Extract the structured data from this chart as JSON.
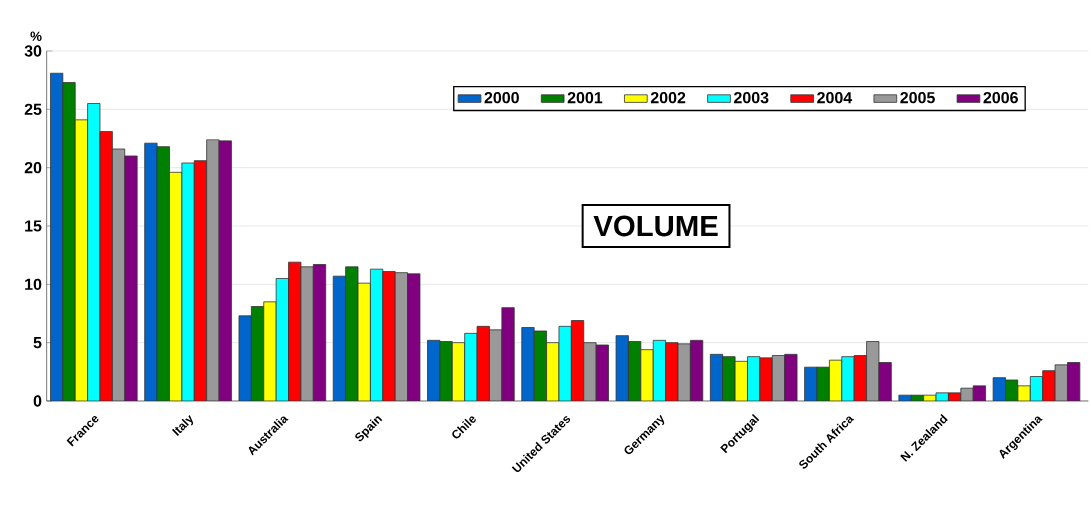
{
  "chart_data": {
    "type": "bar",
    "ylabel": "%",
    "annotations": [
      "VOLUME"
    ],
    "categories": [
      "France",
      "Italy",
      "Australia",
      "Spain",
      "Chile",
      "United States",
      "Germany",
      "Portugal",
      "South Africa",
      "N. Zealand",
      "Argentina"
    ],
    "series": [
      {
        "name": "2000",
        "color": "#0066cc",
        "values": [
          28.1,
          22.1,
          7.3,
          10.7,
          5.2,
          6.3,
          5.6,
          4.0,
          2.9,
          0.5,
          2.0
        ]
      },
      {
        "name": "2001",
        "color": "#008000",
        "values": [
          27.3,
          21.8,
          8.1,
          11.5,
          5.1,
          6.0,
          5.1,
          3.8,
          2.9,
          0.5,
          1.8
        ]
      },
      {
        "name": "2002",
        "color": "#ffff00",
        "values": [
          24.1,
          19.6,
          8.5,
          10.1,
          5.0,
          5.0,
          4.4,
          3.4,
          3.5,
          0.5,
          1.3
        ]
      },
      {
        "name": "2003",
        "color": "#00ffff",
        "values": [
          25.5,
          20.4,
          10.5,
          11.3,
          5.8,
          6.4,
          5.2,
          3.8,
          3.8,
          0.7,
          2.1
        ]
      },
      {
        "name": "2004",
        "color": "#ff0000",
        "values": [
          23.1,
          20.6,
          11.9,
          11.1,
          6.4,
          6.9,
          5.0,
          3.7,
          3.9,
          0.7,
          2.6
        ]
      },
      {
        "name": "2005",
        "color": "#999999",
        "values": [
          21.6,
          22.4,
          11.5,
          11.0,
          6.1,
          5.0,
          4.9,
          3.9,
          5.1,
          1.1,
          3.1
        ]
      },
      {
        "name": "2006",
        "color": "#800080",
        "values": [
          21.0,
          22.3,
          11.7,
          10.9,
          8.0,
          4.8,
          5.2,
          4.0,
          3.3,
          1.3,
          3.3
        ]
      }
    ],
    "ylim": [
      0,
      30
    ],
    "yticks": [
      0,
      5,
      10,
      15,
      20,
      25,
      30
    ],
    "grid": "y",
    "legend": "top right"
  }
}
